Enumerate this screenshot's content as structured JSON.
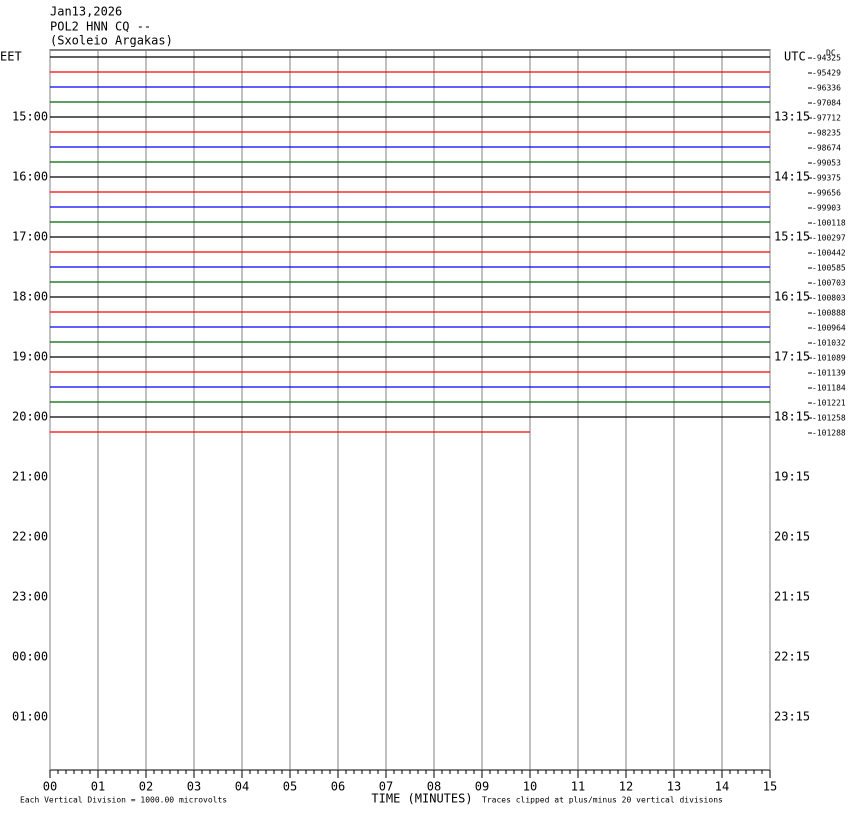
{
  "chart_data": {
    "type": "helicorder",
    "title": "Jan13,2026",
    "subtitle": "POL2 HNN CQ --",
    "station": "(Sxoleio Argakas)",
    "left_label": "EET",
    "right_label": "UTC",
    "dc_label": "DC",
    "left_times": [
      "15:00",
      "16:00",
      "17:00",
      "18:00",
      "19:00",
      "20:00",
      "21:00",
      "22:00",
      "23:00",
      "00:00",
      "01:00"
    ],
    "right_times": [
      "13:15",
      "14:15",
      "15:15",
      "16:15",
      "17:15",
      "18:15",
      "19:15",
      "20:15",
      "21:15",
      "22:15",
      "23:15"
    ],
    "traces": [
      {
        "color": "#000000",
        "dc": -94325,
        "end": 15
      },
      {
        "color": "#ff0000",
        "dc": -95429,
        "end": 15
      },
      {
        "color": "#0000ff",
        "dc": -96336,
        "end": 15
      },
      {
        "color": "#006400",
        "dc": -97084,
        "end": 15
      },
      {
        "color": "#000000",
        "dc": -97712,
        "end": 15
      },
      {
        "color": "#ff0000",
        "dc": -98235,
        "end": 15
      },
      {
        "color": "#0000ff",
        "dc": -98674,
        "end": 15
      },
      {
        "color": "#006400",
        "dc": -99053,
        "end": 15
      },
      {
        "color": "#000000",
        "dc": -99375,
        "end": 15
      },
      {
        "color": "#ff0000",
        "dc": -99656,
        "end": 15
      },
      {
        "color": "#0000ff",
        "dc": -99903,
        "end": 15
      },
      {
        "color": "#006400",
        "dc": -100118,
        "end": 15
      },
      {
        "color": "#000000",
        "dc": -100297,
        "end": 15
      },
      {
        "color": "#ff0000",
        "dc": -100442,
        "end": 15
      },
      {
        "color": "#0000ff",
        "dc": -100585,
        "end": 15
      },
      {
        "color": "#006400",
        "dc": -100703,
        "end": 15
      },
      {
        "color": "#000000",
        "dc": -100803,
        "end": 15
      },
      {
        "color": "#ff0000",
        "dc": -100888,
        "end": 15
      },
      {
        "color": "#0000ff",
        "dc": -100964,
        "end": 15
      },
      {
        "color": "#006400",
        "dc": -101032,
        "end": 15
      },
      {
        "color": "#000000",
        "dc": -101089,
        "end": 15
      },
      {
        "color": "#ff0000",
        "dc": -101139,
        "end": 15
      },
      {
        "color": "#0000ff",
        "dc": -101184,
        "end": 15
      },
      {
        "color": "#006400",
        "dc": -101221,
        "end": 15
      },
      {
        "color": "#000000",
        "dc": -101258,
        "end": 15
      },
      {
        "color": "#ff0000",
        "dc": -101288,
        "end": 10
      }
    ],
    "xlim": [
      0,
      15
    ],
    "xticks": [
      {
        "value": 0,
        "label": "00"
      },
      {
        "value": 1,
        "label": "01"
      },
      {
        "value": 2,
        "label": "02"
      },
      {
        "value": 3,
        "label": "03"
      },
      {
        "value": 4,
        "label": "04"
      },
      {
        "value": 5,
        "label": "05"
      },
      {
        "value": 6,
        "label": "06"
      },
      {
        "value": 7,
        "label": "07"
      },
      {
        "value": 8,
        "label": "08"
      },
      {
        "value": 9,
        "label": "09"
      },
      10,
      11,
      12,
      13,
      14,
      15
    ],
    "xlabel": "TIME (MINUTES)",
    "scale_note": "Each Vertical Division = 1000.00 microvolts",
    "clip_note": "Traces clipped at plus/minus 20 vertical divisions"
  }
}
